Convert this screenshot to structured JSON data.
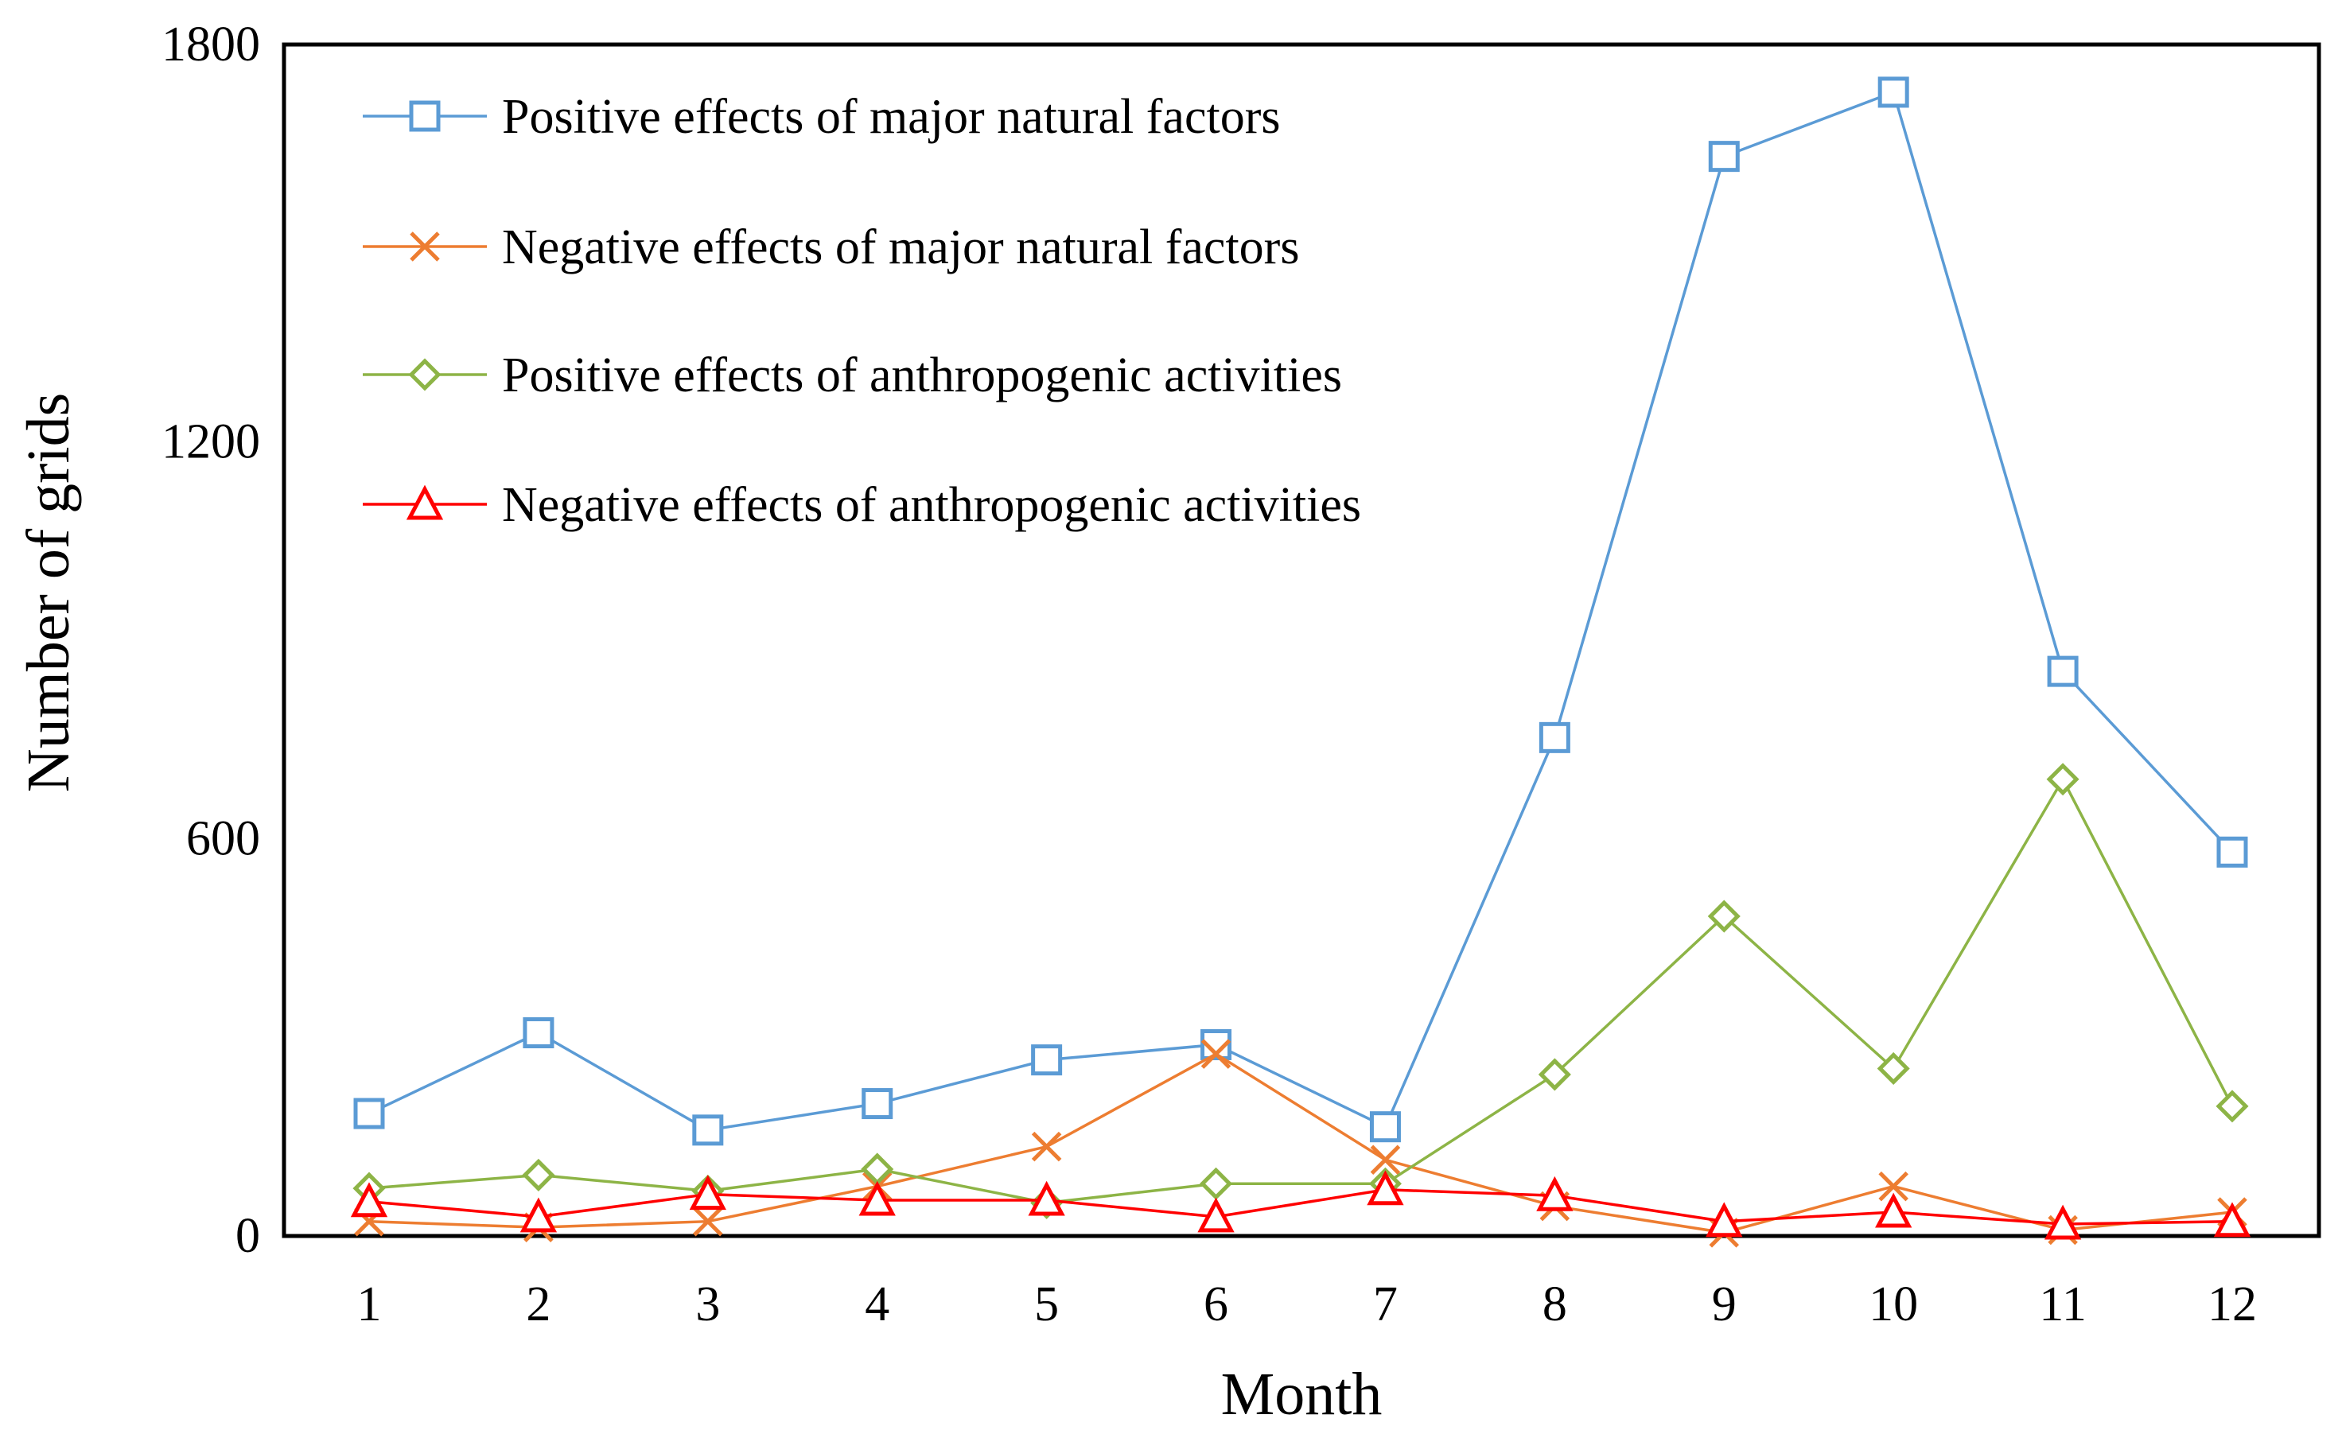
{
  "chart_data": {
    "type": "line",
    "title": "",
    "xlabel": "Month",
    "ylabel": "Number of grids",
    "ylim": [
      0,
      1800
    ],
    "yticks": [
      "0",
      "600",
      "1200",
      "1800"
    ],
    "x": [
      "1",
      "2",
      "3",
      "4",
      "5",
      "6",
      "7",
      "8",
      "9",
      "10",
      "11",
      "12"
    ],
    "grid": false,
    "legend_position": "top-left",
    "series": [
      {
        "name": "Positive effects of major natural factors",
        "color": "#5B9BD5",
        "marker": "square",
        "values": [
          185,
          307,
          160,
          200,
          266,
          289,
          165,
          753,
          1631,
          1728,
          853,
          580
        ]
      },
      {
        "name": "Negative effects of major natural factors",
        "color": "#ED7D31",
        "marker": "x",
        "values": [
          22,
          13,
          22,
          75,
          135,
          275,
          115,
          45,
          5,
          75,
          9,
          36
        ]
      },
      {
        "name": "Positive effects of anthropogenic activities",
        "color": "#8DB446",
        "marker": "diamond",
        "values": [
          72,
          92,
          68,
          101,
          50,
          79,
          79,
          244,
          483,
          253,
          690,
          196
        ]
      },
      {
        "name": "Negative effects of anthropogenic activities",
        "color": "#FF0000",
        "marker": "triangle",
        "values": [
          52,
          29,
          63,
          54,
          54,
          29,
          70,
          61,
          22,
          36,
          18,
          22
        ]
      }
    ]
  }
}
